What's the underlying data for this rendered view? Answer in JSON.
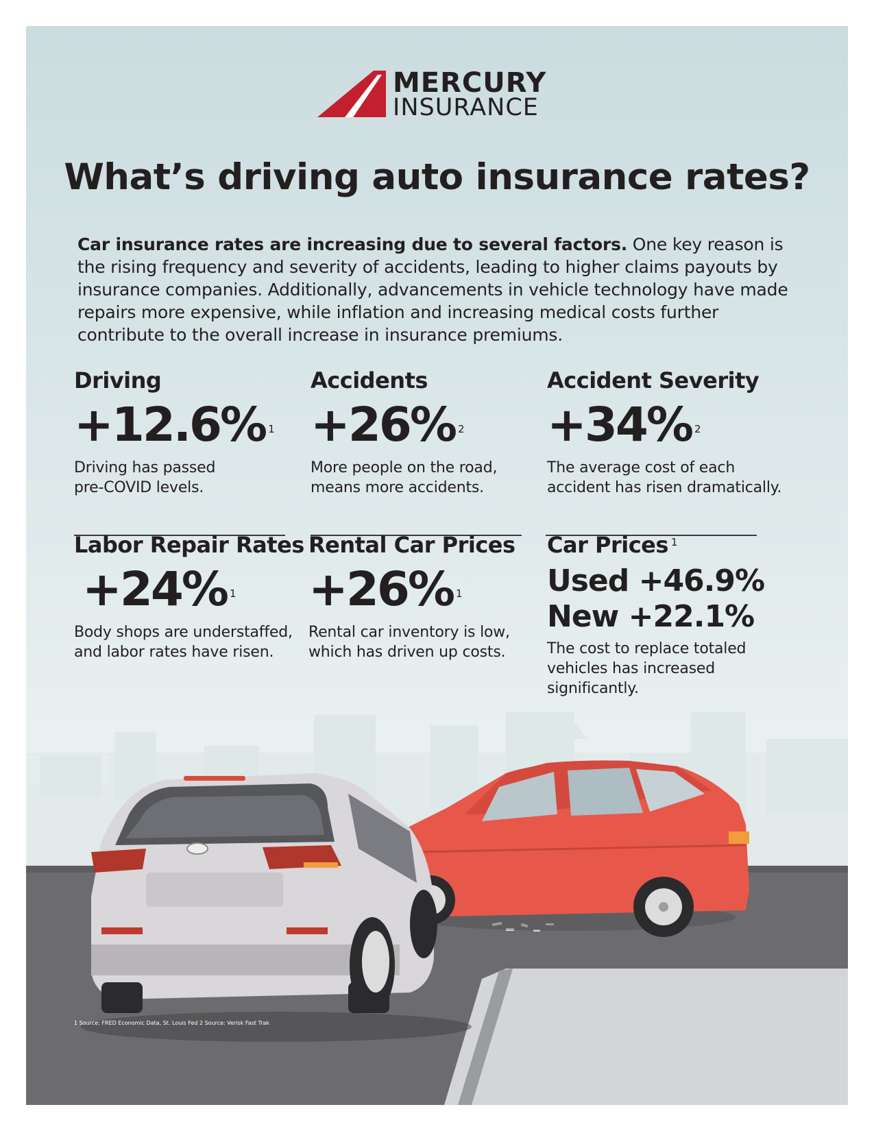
{
  "brand": {
    "line1": "MERCURY",
    "line2": "INSURANCE"
  },
  "headline": "What’s driving auto insurance rates?",
  "intro": {
    "lead": "Car insurance rates are increasing due to several factors.",
    "body": " One key reason is the rising frequency and severity of accidents, leading to higher claims payouts by insurance companies. Additionally, advancements in vehicle technology have made repairs more expensive, while inflation and increasing medical costs further contribute to the overall increase in insurance premiums."
  },
  "stats": {
    "driving": {
      "label": "Driving",
      "value": "+12.6%",
      "sup": "1",
      "desc": "Driving has passed\npre-COVID levels."
    },
    "accidents": {
      "label": "Accidents",
      "value": "+26%",
      "sup": "2",
      "desc": "More people on the road,\nmeans more accidents."
    },
    "severity": {
      "label": "Accident Severity",
      "value": "+34%",
      "sup": "2",
      "desc": "The average cost of each\naccident has risen dramatically."
    },
    "labor": {
      "label": "Labor Repair Rates",
      "value": "+24%",
      "sup": "1",
      "desc": "Body shops are understaffed,\nand labor rates have risen."
    },
    "rental": {
      "label": "Rental Car Prices",
      "value": "+26%",
      "sup": "1",
      "desc": "Rental car inventory is low,\nwhich has driven up costs."
    },
    "car_prices": {
      "label": "Car Prices",
      "sup": "1",
      "used": "Used +46.9%",
      "new": "New +22.1%",
      "desc": "The cost to replace totaled\nvehicles has increased\nsignificantly."
    }
  },
  "footnote": "1 Source: FRED Economic Data, St. Louis Fed    2 Source: Verisk Fast Trak",
  "colors": {
    "brand_red": "#c2202f",
    "text": "#231f20",
    "red_car": "#e8584a",
    "white_car": "#d9d7da",
    "road": "#6c6c6e"
  }
}
